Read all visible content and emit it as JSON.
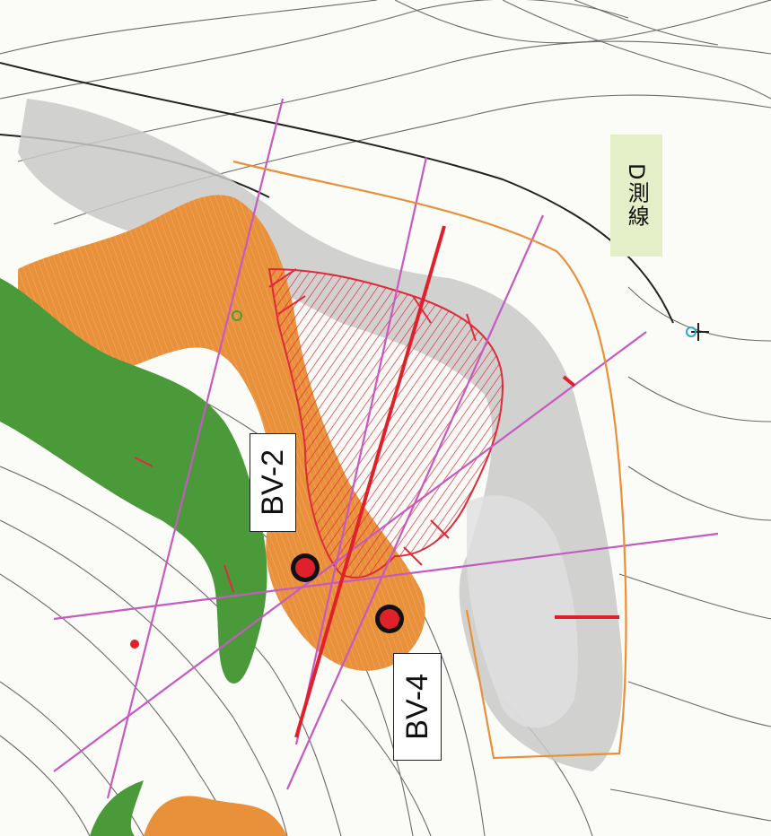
{
  "labels": {
    "bv2": "BV-2",
    "bv4": "BV-4",
    "d_line": "D測線"
  },
  "colors": {
    "orange_zone": "#e8903a",
    "green_zone": "#4a9a3a",
    "gray_zone": "#c9c9c9",
    "survey_line": "#c659c2",
    "section_line": "#e0202a",
    "point_fill": "#e0202a",
    "hatch": "#e02a3a",
    "label_bg": "#e4eec7",
    "contour": "#6a6a6a"
  },
  "icons": [
    "borehole-point",
    "north-arrow-icon"
  ]
}
